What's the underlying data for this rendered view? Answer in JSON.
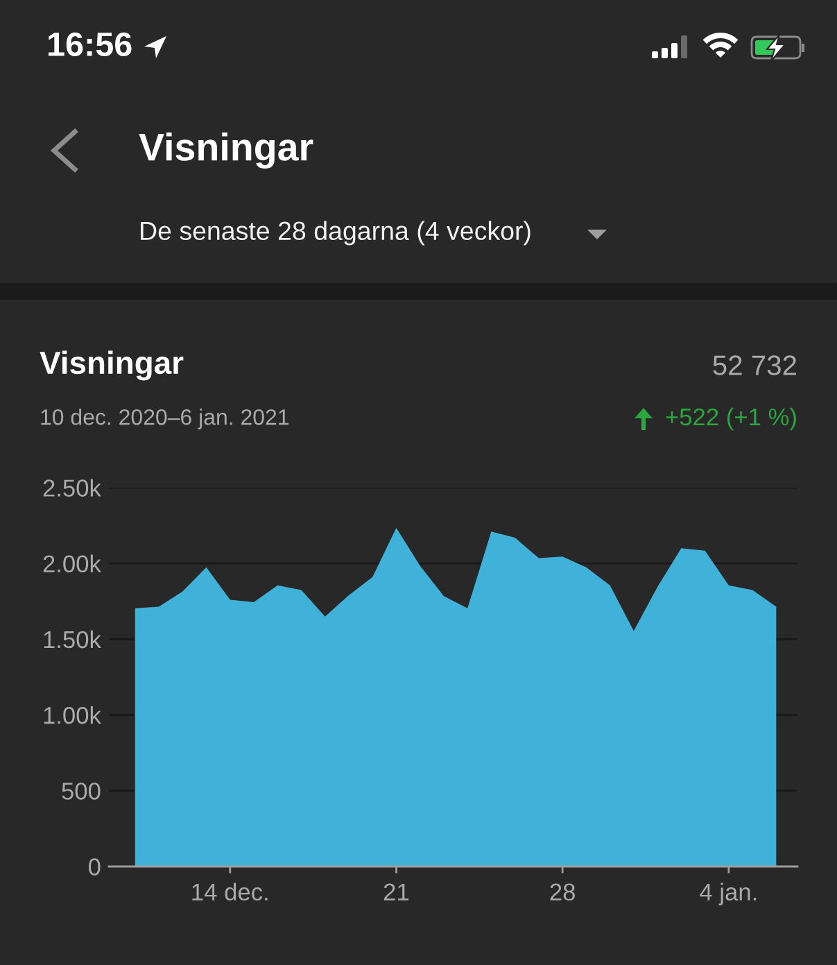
{
  "chart_data": {
    "type": "area",
    "title": "Visningar",
    "subtitle": "10 dec. 2020–6 jan. 2021",
    "annotations": [
      "16:56",
      "Visningar",
      "De senaste 28 dagarna (4 veckor)",
      "52 732",
      "+522 (+1 %)"
    ],
    "x": [
      "2020-12-10",
      "2020-12-11",
      "2020-12-12",
      "2020-12-13",
      "2020-12-14",
      "2020-12-15",
      "2020-12-16",
      "2020-12-17",
      "2020-12-18",
      "2020-12-19",
      "2020-12-20",
      "2020-12-21",
      "2020-12-22",
      "2020-12-23",
      "2020-12-24",
      "2020-12-25",
      "2020-12-26",
      "2020-12-27",
      "2020-12-28",
      "2020-12-29",
      "2020-12-30",
      "2020-12-31",
      "2021-01-01",
      "2021-01-02",
      "2021-01-03",
      "2021-01-04",
      "2021-01-05",
      "2021-01-06"
    ],
    "series": [
      {
        "color": "#40b2da",
        "values": [
          1705,
          1715,
          1815,
          1975,
          1760,
          1745,
          1855,
          1825,
          1650,
          1790,
          1910,
          2235,
          1985,
          1785,
          1705,
          2210,
          2170,
          2035,
          2045,
          1975,
          1855,
          1555,
          1845,
          2100,
          2085,
          1855,
          1825,
          1715
        ]
      }
    ],
    "xlim": [
      "2020-12-08T21:30",
      "2021-01-06T21:30"
    ],
    "xticks": [
      {
        "value": "2020-12-14",
        "label": "14 dec."
      },
      {
        "value": "2020-12-21",
        "label": "21"
      },
      {
        "value": "2020-12-28",
        "label": "28"
      },
      {
        "value": "2021-01-04",
        "label": "4 jan."
      }
    ],
    "ylim": [
      0,
      2500
    ],
    "yticks": [
      0,
      500,
      {
        "value": 1000,
        "label": "1.00k"
      },
      {
        "value": 1500,
        "label": "1.50k"
      },
      {
        "value": 2000,
        "label": "2.00k"
      },
      {
        "value": 2500,
        "label": "2.50k"
      }
    ],
    "grid": "y"
  }
}
